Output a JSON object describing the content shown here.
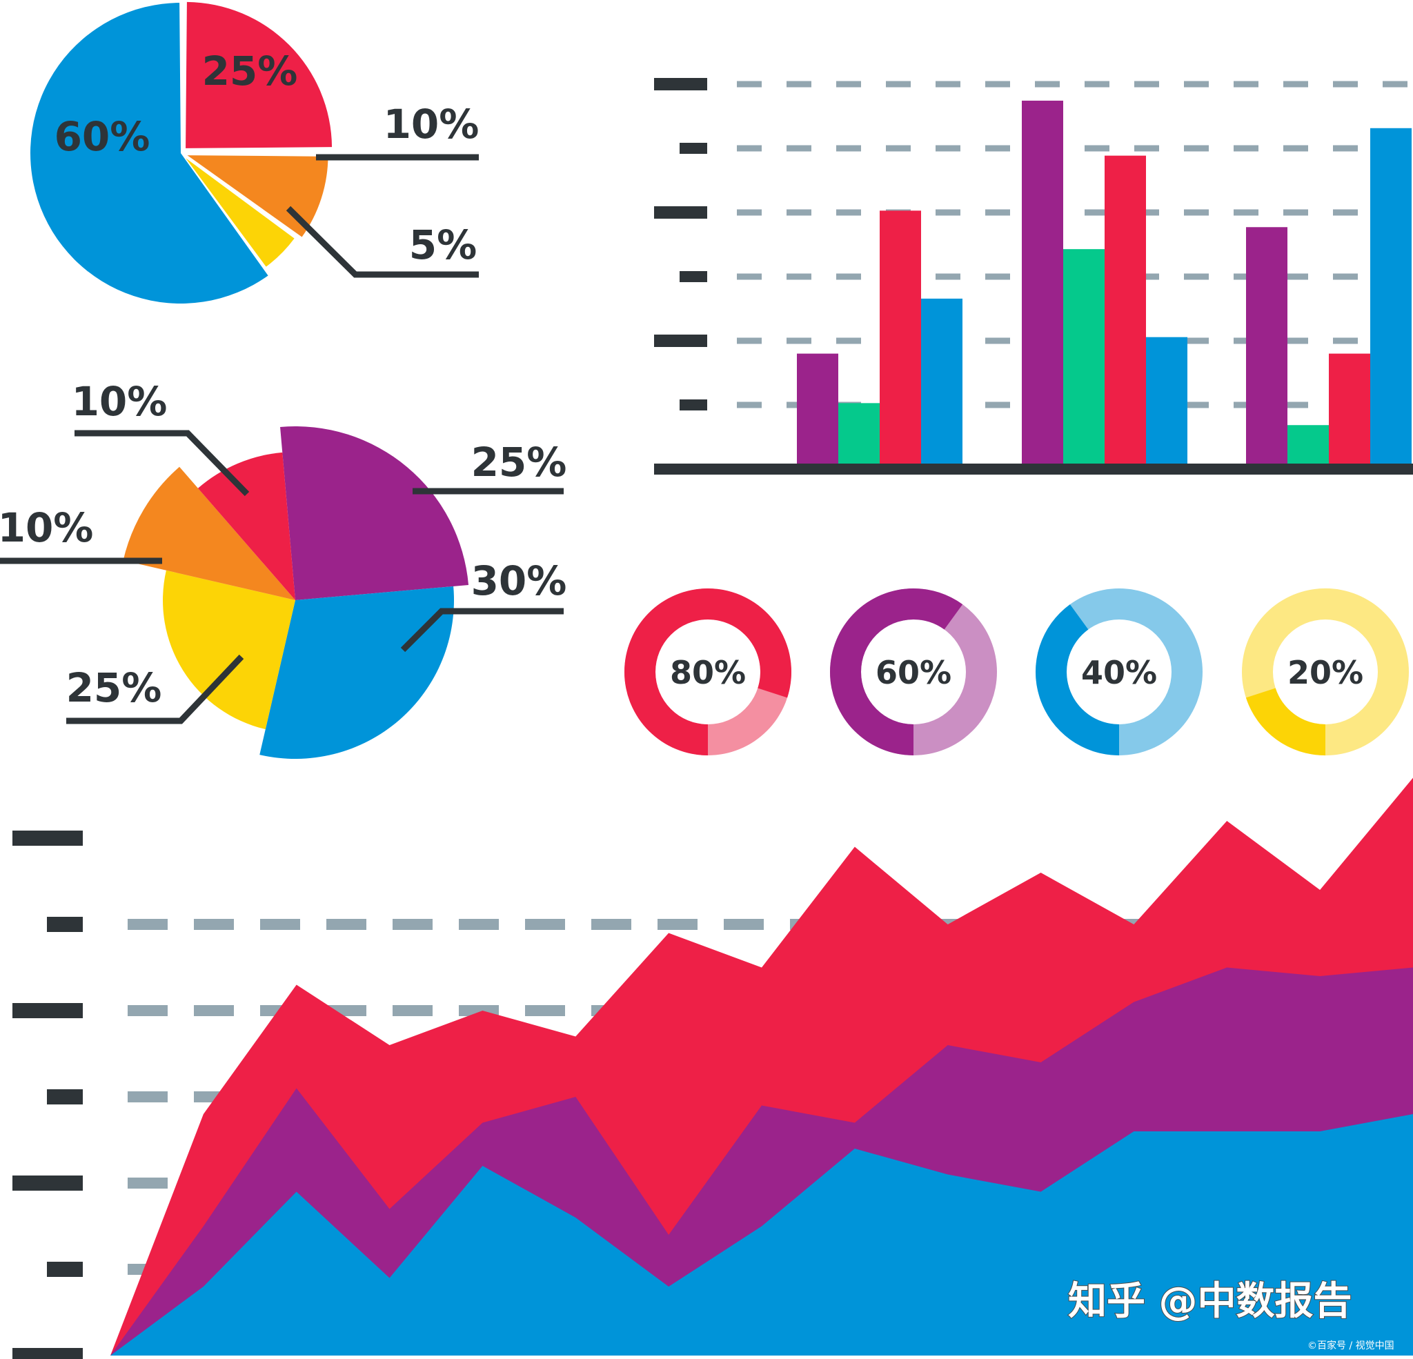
{
  "colors": {
    "red": "#ee2047",
    "orange": "#f4871f",
    "yellow": "#fcd406",
    "blue": "#0094d9",
    "purple": "#9b238b",
    "green": "#05c98c",
    "ink": "#2e3438",
    "grid": "#93a6b0",
    "pink_light": "#f48fa1",
    "purple_light": "#cb8fc3",
    "blue_light": "#85c9ea",
    "yellow_light": "#fde883"
  },
  "chart_data": [
    {
      "type": "pie",
      "id": "pie-top",
      "slices": [
        {
          "label": "25%",
          "value": 25,
          "color": "red"
        },
        {
          "label": "10%",
          "value": 10,
          "color": "orange"
        },
        {
          "label": "5%",
          "value": 5,
          "color": "yellow"
        },
        {
          "label": "60%",
          "value": 60,
          "color": "blue"
        }
      ]
    },
    {
      "type": "pie",
      "id": "pie-middle",
      "slices": [
        {
          "label": "25%",
          "value": 25,
          "color": "purple"
        },
        {
          "label": "30%",
          "value": 30,
          "color": "blue"
        },
        {
          "label": "25%",
          "value": 25,
          "color": "yellow"
        },
        {
          "label": "10%",
          "value": 10,
          "color": "orange"
        },
        {
          "label": "10%",
          "value": 10,
          "color": "red"
        }
      ]
    },
    {
      "type": "bar",
      "id": "bar-chart",
      "ylim": [
        0,
        7
      ],
      "grid": true,
      "categories": [
        "",
        "",
        ""
      ],
      "series": [
        {
          "color": "purple",
          "values": [
            2.1,
            6.7,
            4.4
          ]
        },
        {
          "color": "green",
          "values": [
            1.2,
            4.0,
            0.8
          ]
        },
        {
          "color": "red",
          "values": [
            4.7,
            5.7,
            2.1
          ]
        },
        {
          "color": "blue",
          "values": [
            3.1,
            2.4,
            6.2
          ]
        }
      ]
    },
    {
      "type": "donut",
      "id": "donuts",
      "items": [
        {
          "label": "80%",
          "value": 80,
          "color": "red",
          "track": "pink_light"
        },
        {
          "label": "60%",
          "value": 60,
          "color": "purple",
          "track": "purple_light"
        },
        {
          "label": "40%",
          "value": 40,
          "color": "blue",
          "track": "blue_light"
        },
        {
          "label": "20%",
          "value": 20,
          "color": "yellow",
          "track": "yellow_light"
        }
      ]
    },
    {
      "type": "area",
      "id": "area-chart",
      "ylim": [
        0,
        6
      ],
      "grid": true,
      "x": [
        0,
        1,
        2,
        3,
        4,
        5,
        6,
        7,
        8,
        9,
        10,
        11,
        12,
        13,
        14
      ],
      "series": [
        {
          "color": "red",
          "values": [
            0,
            2.8,
            4.3,
            3.6,
            4.0,
            3.7,
            4.9,
            4.5,
            5.9,
            5.0,
            5.6,
            5.0,
            6.2,
            5.4,
            6.7
          ]
        },
        {
          "color": "purple",
          "values": [
            0,
            1.5,
            3.1,
            1.7,
            2.7,
            3.0,
            1.4,
            2.9,
            2.7,
            3.6,
            3.4,
            4.1,
            4.5,
            4.4,
            4.5
          ]
        },
        {
          "color": "blue",
          "values": [
            0,
            0.8,
            1.9,
            0.9,
            2.2,
            1.6,
            0.8,
            1.5,
            2.4,
            2.1,
            1.9,
            2.6,
            2.6,
            2.6,
            2.8
          ]
        }
      ]
    }
  ],
  "watermark": {
    "main": "知乎 @中数报告",
    "credit": "©百家号 / 视觉中国"
  }
}
